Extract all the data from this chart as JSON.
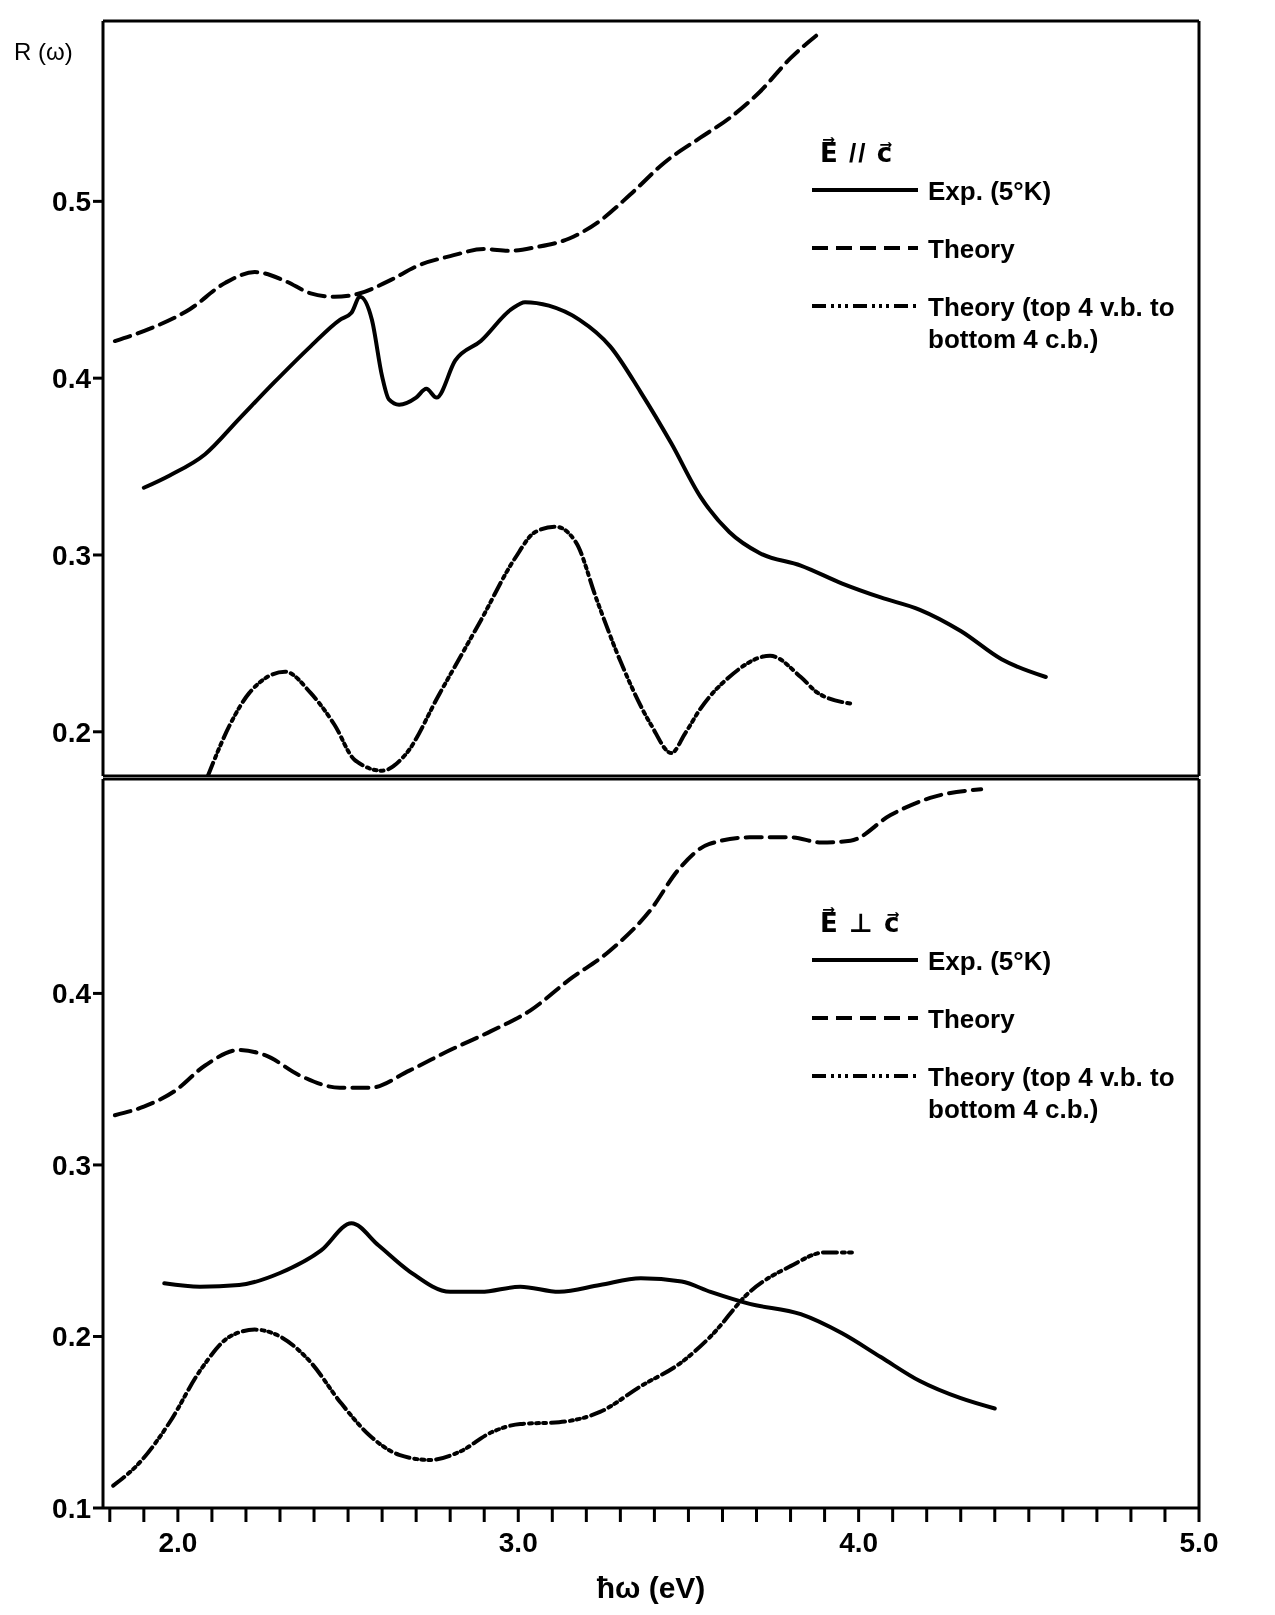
{
  "chart_data": [
    {
      "type": "line",
      "ylabel": "R (ω)",
      "legend_title": "E⃗ // c⃗",
      "legend": "top right",
      "tick_labels": "y",
      "xlim": [
        1.78,
        5.0
      ],
      "ylim": [
        0.175,
        0.602
      ],
      "yticks": [
        0.2,
        0.3,
        0.4,
        0.5
      ],
      "series": [
        {
          "name": "Exp. (5°K)",
          "color": "#000000",
          "line_style": "solid",
          "x": [
            1.9,
            1.976,
            2.08,
            2.18,
            2.285,
            2.39,
            2.476,
            2.51,
            2.535,
            2.57,
            2.6,
            2.62,
            2.65,
            2.7,
            2.73,
            2.76,
            2.815,
            2.89,
            2.98,
            3.02,
            3.09,
            3.18,
            3.27,
            3.36,
            3.45,
            3.535,
            3.62,
            3.71,
            3.83,
            3.95,
            4.065,
            4.18,
            4.3,
            4.42,
            4.55
          ],
          "values": [
            0.338,
            0.345,
            0.357,
            0.377,
            0.398,
            0.418,
            0.433,
            0.437,
            0.446,
            0.433,
            0.401,
            0.388,
            0.385,
            0.389,
            0.394,
            0.389,
            0.41,
            0.421,
            0.439,
            0.443,
            0.441,
            0.433,
            0.418,
            0.392,
            0.363,
            0.333,
            0.313,
            0.301,
            0.294,
            0.284,
            0.276,
            0.269,
            0.257,
            0.241,
            0.231
          ]
        },
        {
          "name": "Theory",
          "color": "#000000",
          "line_style": "dashed",
          "x": [
            1.815,
            1.918,
            2.035,
            2.14,
            2.226,
            2.315,
            2.39,
            2.46,
            2.535,
            2.62,
            2.71,
            2.8,
            2.9,
            2.976,
            3.05,
            3.15,
            3.24,
            3.33,
            3.43,
            3.535,
            3.62,
            3.71,
            3.8,
            3.89
          ],
          "values": [
            0.421,
            0.428,
            0.439,
            0.454,
            0.46,
            0.455,
            0.448,
            0.446,
            0.448,
            0.455,
            0.464,
            0.469,
            0.473,
            0.472,
            0.474,
            0.479,
            0.489,
            0.504,
            0.522,
            0.536,
            0.547,
            0.562,
            0.581,
            0.596
          ]
        },
        {
          "name": "Theory (top 4 v.b. to bottom 4 c.b.)",
          "color": "#000000",
          "line_style": "dotted",
          "x": [
            2.088,
            2.153,
            2.21,
            2.315,
            2.39,
            2.46,
            2.52,
            2.6,
            2.668,
            2.77,
            2.89,
            2.99,
            3.05,
            3.11,
            3.17,
            3.23,
            3.3,
            3.39,
            3.45,
            3.49,
            3.535,
            3.62,
            3.74,
            3.83,
            3.88,
            3.976
          ],
          "values": [
            0.175,
            0.204,
            0.222,
            0.234,
            0.222,
            0.204,
            0.184,
            0.178,
            0.187,
            0.222,
            0.263,
            0.298,
            0.313,
            0.316,
            0.307,
            0.275,
            0.24,
            0.204,
            0.188,
            0.199,
            0.213,
            0.231,
            0.243,
            0.231,
            0.222,
            0.216
          ]
        }
      ]
    },
    {
      "type": "line",
      "xlabel": "ħω (eV)",
      "legend_title": "E⃗ ⊥ c⃗",
      "legend": "top right",
      "xlim": [
        1.78,
        5.0
      ],
      "ylim": [
        0.1,
        0.525
      ],
      "yticks": [
        0.1,
        0.2,
        0.3,
        0.4
      ],
      "xticks": [
        {
          "value": 1.8,
          "label": null
        },
        {
          "value": 1.9,
          "label": null
        },
        {
          "value": 2,
          "label": "2.0"
        },
        {
          "value": 2.1,
          "label": null
        },
        {
          "value": 2.2,
          "label": null
        },
        {
          "value": 2.3,
          "label": null
        },
        {
          "value": 2.4,
          "label": null
        },
        {
          "value": 2.5,
          "label": null
        },
        {
          "value": 2.6,
          "label": null
        },
        {
          "value": 2.7,
          "label": null
        },
        {
          "value": 2.8,
          "label": null
        },
        {
          "value": 2.9,
          "label": null
        },
        {
          "value": 3,
          "label": "3.0"
        },
        {
          "value": 3.1,
          "label": null
        },
        {
          "value": 3.2,
          "label": null
        },
        {
          "value": 3.3,
          "label": null
        },
        {
          "value": 3.4,
          "label": null
        },
        {
          "value": 3.5,
          "label": null
        },
        {
          "value": 3.6,
          "label": null
        },
        {
          "value": 3.7,
          "label": null
        },
        {
          "value": 3.8,
          "label": null
        },
        {
          "value": 3.9,
          "label": null
        },
        {
          "value": 4,
          "label": "4.0"
        },
        {
          "value": 4.1,
          "label": null
        },
        {
          "value": 4.2,
          "label": null
        },
        {
          "value": 4.3,
          "label": null
        },
        {
          "value": 4.4,
          "label": null
        },
        {
          "value": 4.5,
          "label": null
        },
        {
          "value": 4.6,
          "label": null
        },
        {
          "value": 4.7,
          "label": null
        },
        {
          "value": 4.8,
          "label": null
        },
        {
          "value": 4.9,
          "label": null
        },
        {
          "value": 5,
          "label": "5.0"
        }
      ],
      "series": [
        {
          "name": "Exp. (5°K)",
          "color": "#000000",
          "line_style": "solid",
          "x": [
            1.96,
            2.065,
            2.18,
            2.3,
            2.42,
            2.51,
            2.59,
            2.68,
            2.8,
            2.89,
            3.006,
            3.12,
            3.24,
            3.36,
            3.48,
            3.565,
            3.68,
            3.83,
            3.95,
            4.065,
            4.18,
            4.3,
            4.4
          ],
          "values": [
            0.231,
            0.229,
            0.23,
            0.237,
            0.25,
            0.266,
            0.253,
            0.238,
            0.226,
            0.226,
            0.229,
            0.226,
            0.23,
            0.234,
            0.232,
            0.226,
            0.219,
            0.213,
            0.202,
            0.188,
            0.174,
            0.164,
            0.158
          ]
        },
        {
          "name": "Theory",
          "color": "#000000",
          "line_style": "dashed",
          "x": [
            1.815,
            1.9,
            1.99,
            2.08,
            2.18,
            2.256,
            2.36,
            2.476,
            2.565,
            2.68,
            2.8,
            2.92,
            3.035,
            3.15,
            3.27,
            3.39,
            3.47,
            3.56,
            3.68,
            3.8,
            3.89,
            3.976,
            4.094,
            4.21,
            4.36
          ],
          "values": [
            0.329,
            0.334,
            0.343,
            0.358,
            0.367,
            0.364,
            0.352,
            0.345,
            0.345,
            0.355,
            0.367,
            0.378,
            0.39,
            0.408,
            0.425,
            0.449,
            0.472,
            0.487,
            0.491,
            0.491,
            0.488,
            0.489,
            0.504,
            0.514,
            0.519
          ]
        },
        {
          "name": "Theory (top 4 v.b. to bottom 4 c.b.)",
          "color": "#000000",
          "line_style": "dotted",
          "x": [
            1.81,
            1.89,
            1.976,
            2.065,
            2.153,
            2.226,
            2.3,
            2.39,
            2.476,
            2.565,
            2.65,
            2.74,
            2.83,
            2.92,
            3.006,
            3.12,
            3.24,
            3.36,
            3.48,
            3.565,
            3.68,
            3.8,
            3.9,
            3.99
          ],
          "values": [
            0.113,
            0.127,
            0.15,
            0.18,
            0.2,
            0.204,
            0.2,
            0.185,
            0.162,
            0.142,
            0.131,
            0.128,
            0.133,
            0.144,
            0.149,
            0.15,
            0.156,
            0.171,
            0.185,
            0.2,
            0.226,
            0.241,
            0.249,
            0.249
          ]
        }
      ]
    }
  ]
}
